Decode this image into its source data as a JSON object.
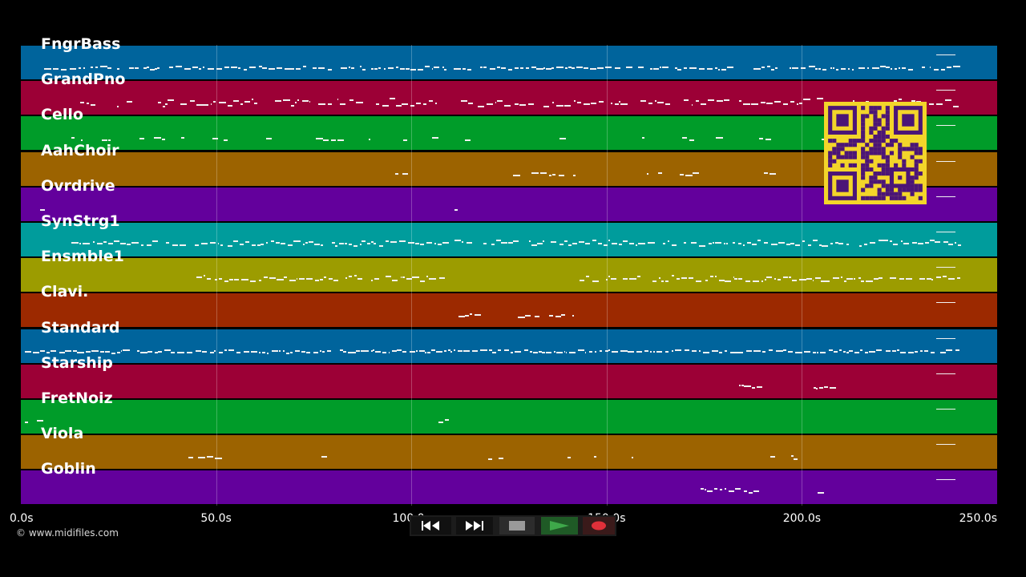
{
  "timeline": {
    "unit": "s",
    "max": 250,
    "ticks": [
      {
        "value": 0,
        "label": "0.0s"
      },
      {
        "value": 50,
        "label": "50.0s"
      },
      {
        "value": 100,
        "label": "100.0s"
      },
      {
        "value": 150,
        "label": "150.0s"
      },
      {
        "value": 200,
        "label": "200.0s"
      },
      {
        "value": 250,
        "label": "250.0s"
      }
    ]
  },
  "tracks": [
    {
      "name": "FngrBass",
      "color": "#00649c"
    },
    {
      "name": "GrandPno",
      "color": "#9c0036"
    },
    {
      "name": "Cello",
      "color": "#009c29"
    },
    {
      "name": "AahChoir",
      "color": "#9c6300"
    },
    {
      "name": "Ovrdrive",
      "color": "#63009c"
    },
    {
      "name": "SynStrg1",
      "color": "#009c9c"
    },
    {
      "name": "Ensmble1",
      "color": "#9c9c00"
    },
    {
      "name": "Clavi.",
      "color": "#9c2900"
    },
    {
      "name": "Standard",
      "color": "#00649c"
    },
    {
      "name": "Starship",
      "color": "#9c0036"
    },
    {
      "name": "FretNoiz",
      "color": "#009c29"
    },
    {
      "name": "Viola",
      "color": "#9c6300"
    },
    {
      "name": "Goblin",
      "color": "#63009c"
    }
  ],
  "copyright": "© www.midifiles.com",
  "transport": {
    "rewind_icon": "rewind-icon",
    "fast_forward_icon": "fast-forward-icon",
    "stop_icon": "stop-icon",
    "play_icon": "play-icon",
    "record_icon": "record-icon",
    "play_color": "#3ea84a",
    "record_color": "#e0303a"
  },
  "qr_code_icon": "qr-code-icon"
}
